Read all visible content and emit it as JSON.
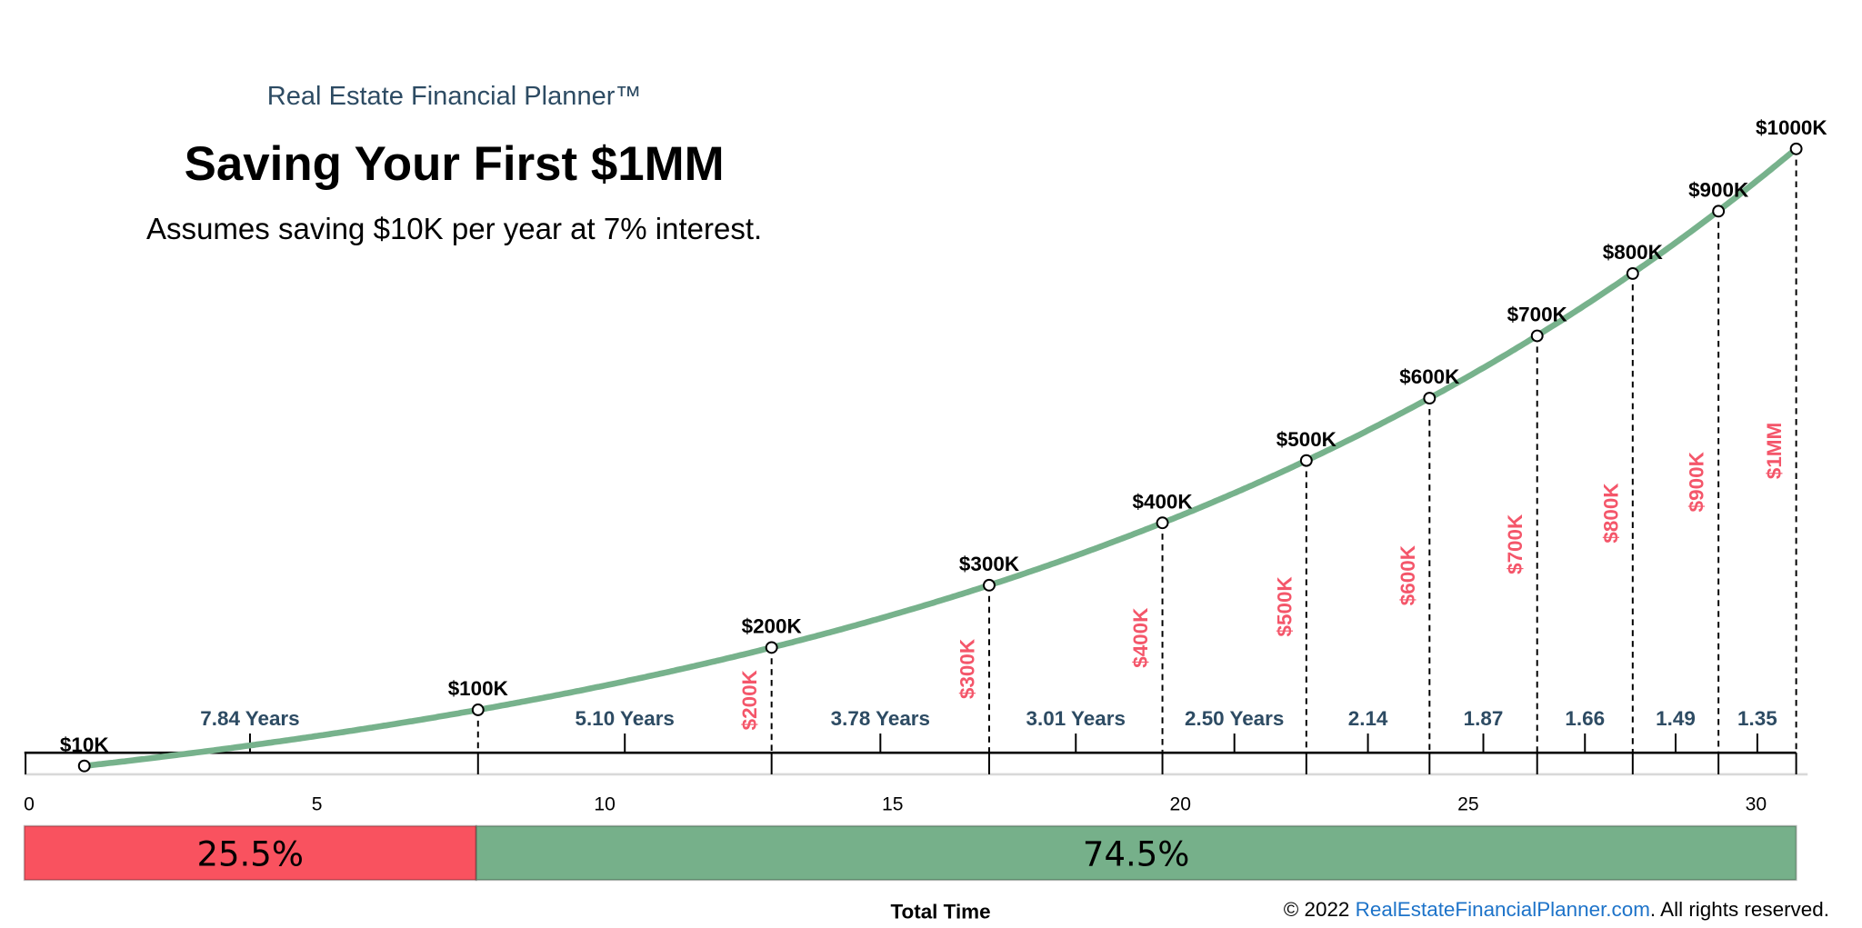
{
  "header": {
    "brand": "Real Estate Financial Planner™",
    "title": "Saving Your First $1MM",
    "subtitle": "Assumes saving $10K per year at 7% interest."
  },
  "chart_data": {
    "type": "line",
    "title": "Saving Your First $1MM",
    "subtitle": "Assumes saving $10K per year at 7% interest.",
    "xlabel": "Total Time",
    "xlim": [
      0,
      31
    ],
    "xticks": [
      0,
      5,
      10,
      15,
      20,
      25,
      30
    ],
    "ylim": [
      10,
      1000
    ],
    "grid": false,
    "line_color": "#77b28c",
    "annual_saving_k": 10,
    "interest_rate": 0.07,
    "milestones": [
      {
        "label": "$10K",
        "year": 1.0,
        "value": 10
      },
      {
        "label": "$100K",
        "year": 7.84,
        "value": 100,
        "vlabel": ""
      },
      {
        "label": "$200K",
        "year": 12.94,
        "value": 200,
        "vlabel": "$200K"
      },
      {
        "label": "$300K",
        "year": 16.72,
        "value": 300,
        "vlabel": "$300K"
      },
      {
        "label": "$400K",
        "year": 19.73,
        "value": 400,
        "vlabel": "$400K"
      },
      {
        "label": "$500K",
        "year": 22.23,
        "value": 500,
        "vlabel": "$500K"
      },
      {
        "label": "$600K",
        "year": 24.37,
        "value": 600,
        "vlabel": "$600K"
      },
      {
        "label": "$700K",
        "year": 26.24,
        "value": 700,
        "vlabel": "$700K"
      },
      {
        "label": "$800K",
        "year": 27.9,
        "value": 800,
        "vlabel": "$800K"
      },
      {
        "label": "$900K",
        "year": 29.39,
        "value": 900,
        "vlabel": "$900K"
      },
      {
        "label": "$1000K",
        "year": 30.74,
        "value": 1000,
        "vlabel": "$1MM"
      }
    ],
    "intervals": [
      "7.84 Years",
      "5.10 Years",
      "3.78 Years",
      "3.01 Years",
      "2.50 Years",
      "2.14",
      "1.87",
      "1.66",
      "1.49",
      "1.35"
    ],
    "share_bar": [
      {
        "label": "25.5%",
        "value": 25.5,
        "color": "#f9525f"
      },
      {
        "label": "74.5%",
        "value": 74.5,
        "color": "#76b08a"
      }
    ]
  },
  "footer": {
    "total_time": "Total Time",
    "copyright_prefix": "© 2022 ",
    "link": "RealEstateFinancialPlanner.com",
    "copyright_suffix": ". All rights reserved."
  }
}
